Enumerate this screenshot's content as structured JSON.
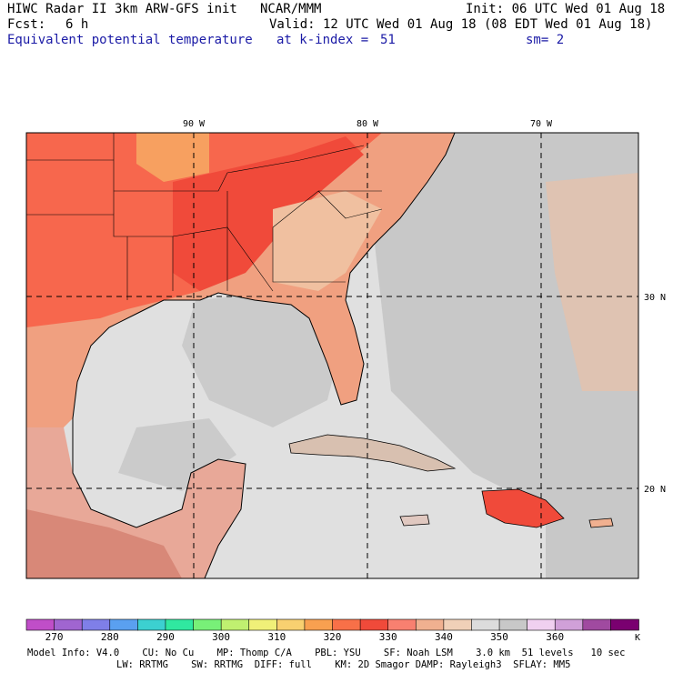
{
  "header": {
    "model_title": "HIWC Radar II 3km ARW-GFS init",
    "org": "NCAR/MMM",
    "init": "Init: 06 UTC Wed 01 Aug 18",
    "fcst_label": "Fcst:",
    "fcst_value": "6 h",
    "valid": "Valid: 12 UTC Wed 01 Aug 18 (08 EDT Wed 01 Aug 18)",
    "field": "Equivalent potential temperature",
    "level": "at k-index =",
    "level_value": "51",
    "smooth": "sm= 2"
  },
  "map": {
    "lon_labels": [
      "90 W",
      "80 W",
      "70 W"
    ],
    "lat_labels": [
      "30 N",
      "20 N"
    ],
    "colors": {
      "ocean": "#e0e0e0",
      "land_warm": "#f7674d",
      "land_hot": "#f04a3a",
      "land_mid": "#f0a080",
      "land_tan": "#f0c8a8",
      "grid": "#000000"
    }
  },
  "colorbar": {
    "unit": "K",
    "ticks": [
      "270",
      "280",
      "290",
      "300",
      "310",
      "320",
      "330",
      "340",
      "350",
      "360"
    ],
    "colors": [
      "#c04ec8",
      "#a065d0",
      "#7f7fe8",
      "#5aa0f0",
      "#3cd0d0",
      "#30e8a0",
      "#78f078",
      "#c0f070",
      "#f0f078",
      "#f8d070",
      "#f8a050",
      "#f87048",
      "#f04a3a",
      "#f88070",
      "#f0b090",
      "#f0d0b8",
      "#dcdcdc",
      "#c8c8c8",
      "#f0d0f0",
      "#d0a0d8",
      "#a04aa0",
      "#7a0070"
    ]
  },
  "footer": {
    "line1": "Model Info: V4.0    CU: No Cu    MP: Thomp C/A    PBL: YSU    SF: Noah LSM    3.0 km  51 levels   10 sec",
    "line2": "LW: RRTMG    SW: RRTMG  DIFF: full    KM: 2D Smagor DAMP: Rayleigh3  SFLAY: MM5"
  }
}
